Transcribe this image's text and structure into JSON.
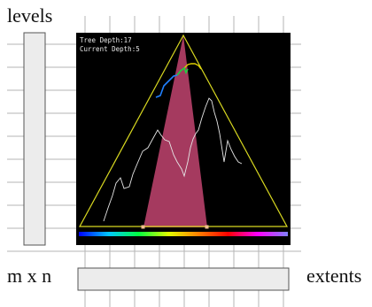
{
  "labels": {
    "levels": "levels",
    "mxn": "m x n",
    "extents": "extents"
  },
  "overlay": {
    "tree_depth": "Tree Depth:17",
    "current_depth": "Current Depth:5"
  },
  "colors": {
    "grid": "#b5b5b5",
    "panel_fill": "#ececec",
    "panel_stroke": "#555555",
    "viewport_bg": "#000000",
    "frustum": "#d24a77",
    "triangle": "#d8d820",
    "terrain_line": "#e6e6e6",
    "path_yellow": "#e0d000",
    "path_green": "#20d040",
    "path_blue": "#2080ff",
    "marker": "#f0c090"
  },
  "rainbow_bar": [
    "#0000ff",
    "#00c8ff",
    "#00ff40",
    "#e0ff00",
    "#ff8000",
    "#ff0000",
    "#ff00ff",
    "#8080ff"
  ]
}
